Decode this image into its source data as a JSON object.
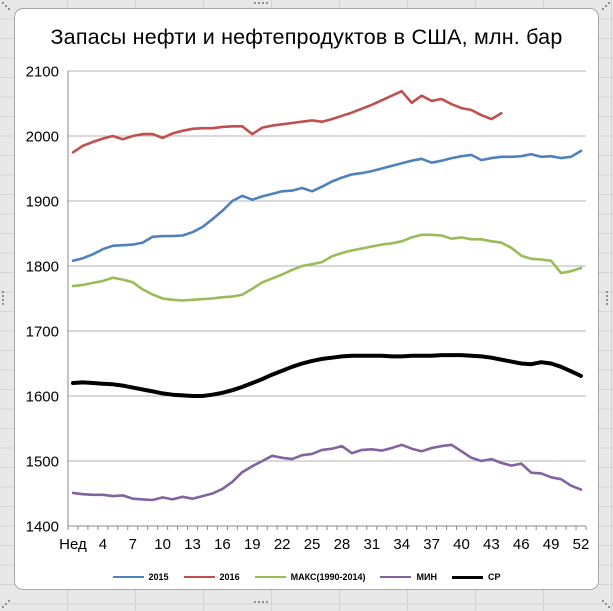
{
  "sheet": {
    "background_color": "#E8E8E8",
    "grid_color": "#D4D4D4"
  },
  "chart": {
    "title": "Запасы нефти и нефтепродуктов в США, млн. бар",
    "background_color": "#FFFFFF",
    "border_color": "#A8A8A8",
    "gridline_color": "#B3B3B3",
    "axis_color": "#8A8A8A",
    "text_color": "#000000"
  },
  "chart_data": {
    "type": "line",
    "title": "Запасы нефти и нефтепродуктов в США, млн. бар",
    "xlabel": "",
    "ylabel": "",
    "ylim": [
      1400,
      2100
    ],
    "grid": true,
    "legend_position": "bottom",
    "y_axis": {
      "ticks": [
        2100,
        2000,
        1900,
        1800,
        1700,
        1600,
        1500,
        1400
      ]
    },
    "x_axis": {
      "weeks": 52,
      "tick_labels": [
        "Нед",
        "4",
        "7",
        "10",
        "13",
        "16",
        "19",
        "22",
        "25",
        "28",
        "31",
        "34",
        "37",
        "40",
        "43",
        "46",
        "49",
        "52"
      ],
      "tick_label_weeks": [
        1,
        4,
        7,
        10,
        13,
        16,
        19,
        22,
        25,
        28,
        31,
        34,
        37,
        40,
        43,
        46,
        49,
        52
      ]
    },
    "series": [
      {
        "name": "2015",
        "color": "#4F81BD",
        "stroke_width": 2.6,
        "values": [
          1808,
          1812,
          1818,
          1826,
          1831,
          1832,
          1833,
          1836,
          1845,
          1846,
          1846,
          1847,
          1852,
          1860,
          1872,
          1885,
          1900,
          1908,
          1902,
          1907,
          1911,
          1915,
          1916,
          1920,
          1915,
          1922,
          1930,
          1936,
          1941,
          1943,
          1946,
          1950,
          1954,
          1958,
          1962,
          1965,
          1959,
          1962,
          1966,
          1969,
          1971,
          1963,
          1966,
          1968,
          1968,
          1969,
          1972,
          1968,
          1969,
          1966,
          1968,
          1977
        ]
      },
      {
        "name": "2016",
        "color": "#C0504D",
        "stroke_width": 2.6,
        "values": [
          1975,
          1985,
          1991,
          1996,
          2000,
          1995,
          2000,
          2003,
          2003,
          1997,
          2004,
          2008,
          2011,
          2012,
          2012,
          2014,
          2015,
          2015,
          2003,
          2013,
          2016,
          2018,
          2020,
          2022,
          2024,
          2022,
          2026,
          2031,
          2036,
          2042,
          2048,
          2055,
          2062,
          2069,
          2051,
          2062,
          2054,
          2057,
          2049,
          2043,
          2040,
          2032,
          2026,
          2035
        ]
      },
      {
        "name": "МАКС(1990-2014)",
        "color": "#9BBB59",
        "stroke_width": 2.6,
        "values": [
          1769,
          1771,
          1774,
          1777,
          1782,
          1779,
          1775,
          1764,
          1756,
          1750,
          1748,
          1747,
          1748,
          1749,
          1750,
          1752,
          1753,
          1756,
          1765,
          1775,
          1781,
          1787,
          1794,
          1800,
          1803,
          1806,
          1815,
          1820,
          1824,
          1827,
          1830,
          1833,
          1835,
          1838,
          1844,
          1848,
          1848,
          1847,
          1842,
          1844,
          1841,
          1841,
          1838,
          1836,
          1828,
          1816,
          1811,
          1810,
          1808,
          1789,
          1792,
          1797
        ]
      },
      {
        "name": "МИН",
        "color": "#8064A2",
        "stroke_width": 2.6,
        "values": [
          1451,
          1449,
          1448,
          1448,
          1446,
          1447,
          1442,
          1441,
          1440,
          1444,
          1441,
          1445,
          1442,
          1446,
          1450,
          1457,
          1468,
          1483,
          1492,
          1500,
          1508,
          1505,
          1503,
          1509,
          1511,
          1517,
          1519,
          1523,
          1512,
          1517,
          1518,
          1516,
          1520,
          1525,
          1519,
          1515,
          1520,
          1523,
          1525,
          1515,
          1505,
          1500,
          1503,
          1497,
          1493,
          1496,
          1482,
          1481,
          1475,
          1472,
          1462,
          1456
        ]
      },
      {
        "name": "СР",
        "color": "#000000",
        "stroke_width": 4,
        "values": [
          1620,
          1621,
          1620,
          1619,
          1618,
          1616,
          1613,
          1610,
          1607,
          1604,
          1602,
          1601,
          1600,
          1600,
          1602,
          1605,
          1609,
          1614,
          1620,
          1626,
          1633,
          1639,
          1645,
          1650,
          1654,
          1657,
          1659,
          1661,
          1662,
          1662,
          1662,
          1662,
          1661,
          1661,
          1662,
          1662,
          1662,
          1663,
          1663,
          1663,
          1662,
          1661,
          1659,
          1656,
          1653,
          1650,
          1649,
          1652,
          1650,
          1645,
          1638,
          1631
        ]
      }
    ]
  }
}
